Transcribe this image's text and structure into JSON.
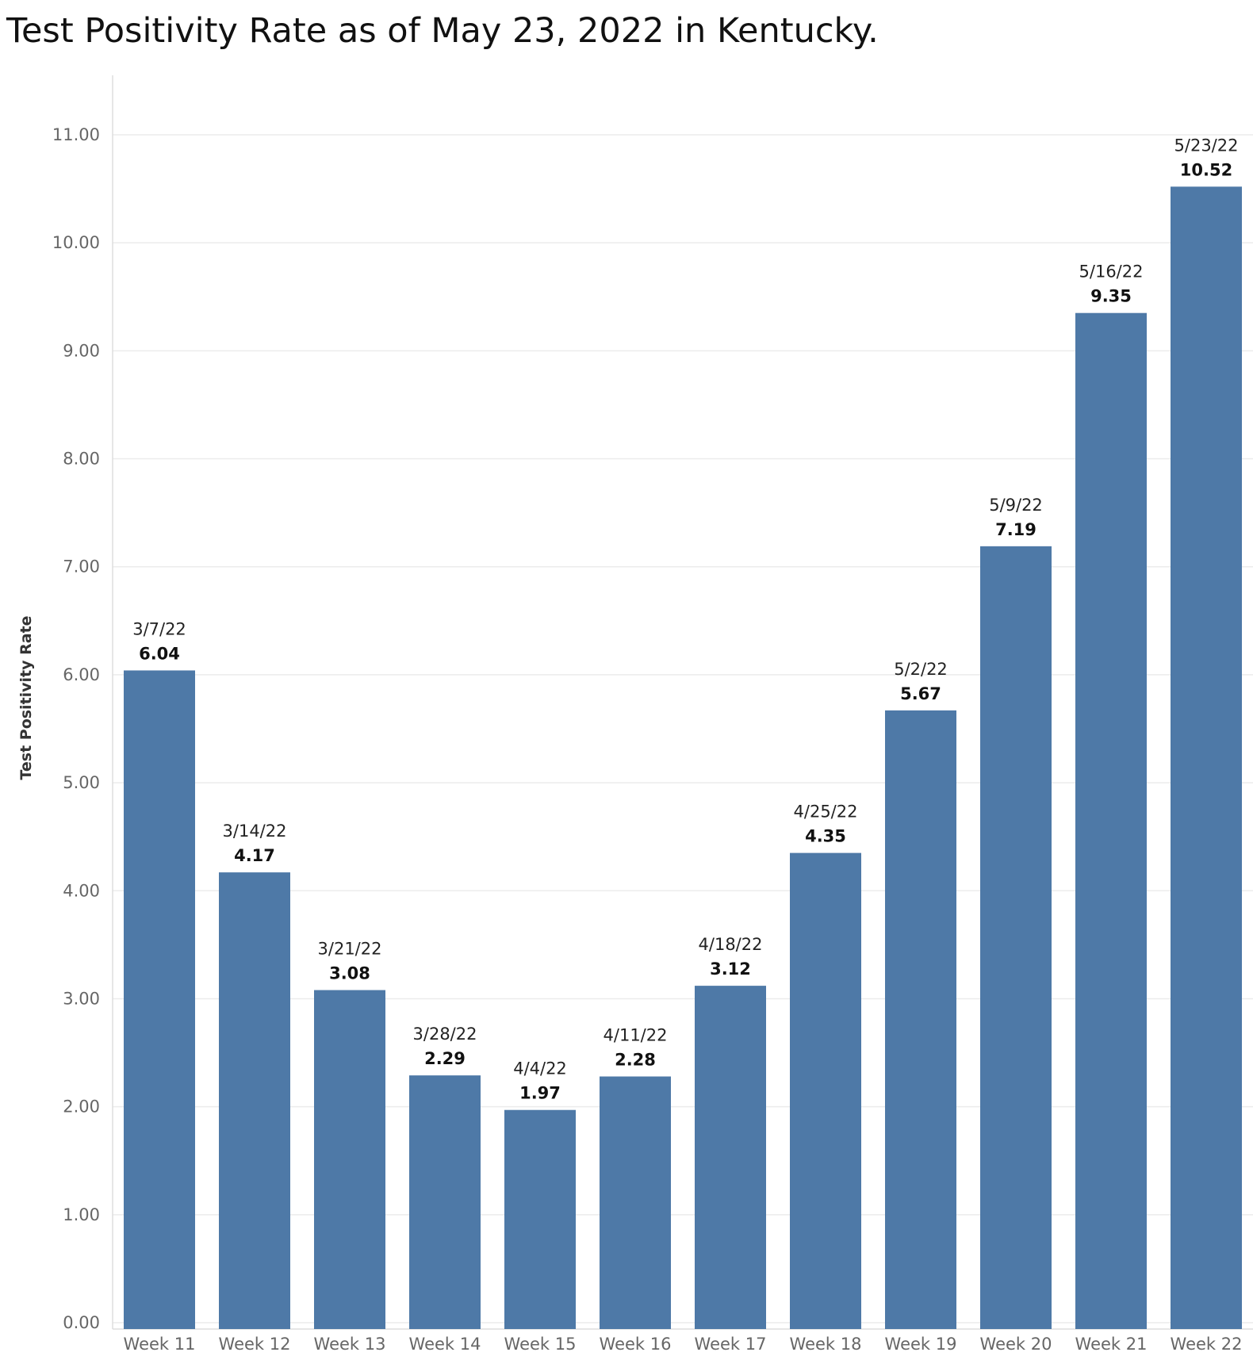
{
  "chart_data": {
    "type": "bar",
    "title": "Test Positivity Rate as of May 23, 2022 in Kentucky.",
    "xlabel": "",
    "ylabel": "Test Positivity Rate",
    "categories": [
      "Week 11",
      "Week 12",
      "Week 13",
      "Week 14",
      "Week 15",
      "Week 16",
      "Week 17",
      "Week 18",
      "Week 19",
      "Week 20",
      "Week 21",
      "Week 22"
    ],
    "dates": [
      "3/7/22",
      "3/14/22",
      "3/21/22",
      "3/28/22",
      "4/4/22",
      "4/11/22",
      "4/18/22",
      "4/25/22",
      "5/2/22",
      "5/9/22",
      "5/16/22",
      "5/23/22"
    ],
    "values": [
      6.04,
      4.17,
      3.08,
      2.29,
      1.97,
      2.28,
      3.12,
      4.35,
      5.67,
      7.19,
      9.35,
      10.52
    ],
    "value_labels": [
      "6.04",
      "4.17",
      "3.08",
      "2.29",
      "1.97",
      "2.28",
      "3.12",
      "4.35",
      "5.67",
      "7.19",
      "9.35",
      "10.52"
    ],
    "yticks": [
      0,
      1,
      2,
      3,
      4,
      5,
      6,
      7,
      8,
      9,
      10,
      11
    ],
    "ytick_labels": [
      "0.00",
      "1.00",
      "2.00",
      "3.00",
      "4.00",
      "5.00",
      "6.00",
      "7.00",
      "8.00",
      "9.00",
      "10.00",
      "11.00"
    ],
    "ylim": [
      0,
      11.55
    ],
    "grid": true,
    "legend": "none",
    "colors": {
      "bar": "#4e79a7",
      "grid": "#ececec",
      "axis": "#dddddd"
    }
  }
}
